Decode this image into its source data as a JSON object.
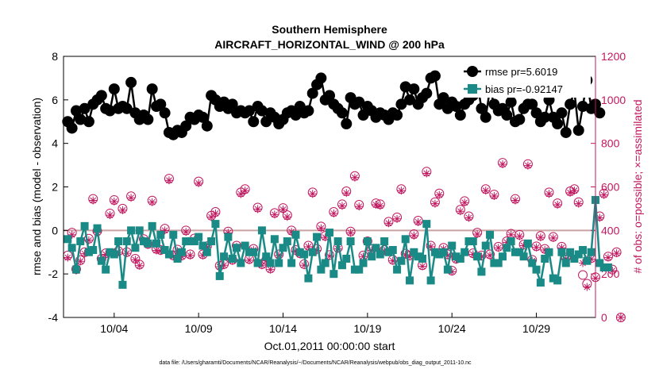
{
  "chart_data": {
    "type": "line",
    "title": "Southern Hemisphere",
    "subtitle": "AIRCRAFT_HORIZONTAL_WIND @ 200 hPa",
    "xlabel": "Oct.01,2011 00:00:00 start",
    "ylabel": "rmse and bias (model - observation)",
    "y2label": "# of obs: o=possible; ×=assimilated",
    "footnote": "data file: /Users/gharamti/Documents/NCAR/Reanalysis/~/Documents/NCAR/Reanalysis/webpub/obs_diag_output_2011-10.nc",
    "xlim": [
      1.0,
      32.5
    ],
    "ylim": [
      -4,
      8
    ],
    "y2lim": [
      0,
      1200
    ],
    "xticks": [
      4,
      9,
      14,
      19,
      24,
      29
    ],
    "xticklabels": [
      "10/04",
      "10/09",
      "10/14",
      "10/19",
      "10/24",
      "10/29"
    ],
    "yticks": [
      -4,
      -2,
      0,
      2,
      4,
      6,
      8
    ],
    "yticklabels": [
      "-4",
      "-2",
      "0",
      "2",
      "4",
      "6",
      "8"
    ],
    "y2ticks": [
      0,
      200,
      400,
      600,
      800,
      1000,
      1200
    ],
    "y2ticklabels": [
      "0",
      "200",
      "400",
      "600",
      "800",
      "1000",
      "1200"
    ],
    "legend_position": "top-right",
    "legend": [
      {
        "label": "rmse pr=5.6019",
        "color": "#000000"
      },
      {
        "label": "bias pr=-0.92147",
        "color": "#1a8a86"
      }
    ],
    "colors": {
      "rmse": "#000000",
      "bias": "#1a8a86",
      "obs": "#c0185f",
      "zero": "#c9a3a3",
      "axis2": "#c0185f"
    },
    "series": [
      {
        "name": "rmse",
        "axis": "left",
        "x_start": 1.25,
        "x_step": 0.25,
        "values": [
          5.0,
          4.7,
          5.5,
          5.1,
          5.6,
          5.0,
          5.8,
          6.0,
          6.2,
          5.6,
          5.5,
          6.5,
          5.6,
          5.7,
          5.6,
          6.8,
          5.4,
          5.1,
          5.3,
          5.1,
          6.5,
          5.7,
          5.8,
          5.4,
          4.5,
          4.4,
          4.6,
          4.5,
          4.8,
          5.2,
          5.1,
          5.3,
          5.2,
          4.8,
          6.2,
          6.0,
          5.7,
          5.9,
          5.6,
          5.8,
          5.4,
          5.5,
          5.4,
          5.5,
          5.0,
          5.7,
          5.5,
          5.0,
          5.4,
          5.2,
          4.9,
          5.1,
          5.4,
          5.5,
          5.3,
          5.7,
          5.4,
          5.5,
          6.3,
          6.7,
          7.0,
          6.0,
          6.2,
          5.8,
          5.6,
          5.4,
          4.9,
          6.1,
          5.8,
          5.9,
          5.3,
          5.7,
          5.5,
          5.2,
          5.4,
          5.3,
          5.1,
          5.4,
          5.3,
          5.8,
          6.6,
          6.0,
          6.5,
          5.8,
          6.1,
          6.3,
          7.0,
          7.1,
          5.8,
          6.1,
          5.6,
          5.9,
          5.7,
          5.3,
          5.8,
          6.0,
          6.2,
          6.8,
          5.6,
          5.2,
          6.5,
          5.8,
          5.5,
          5.6,
          5.3,
          5.9,
          5.0,
          5.1,
          5.6,
          5.8,
          5.8,
          5.4,
          5.0,
          5.2,
          6.0,
          5.2,
          4.9,
          5.4,
          4.5,
          5.8,
          6.4,
          4.6,
          5.7,
          6.9,
          5.6,
          5.8,
          5.4
        ]
      },
      {
        "name": "bias",
        "axis": "left",
        "x_start": 1.25,
        "x_step": 0.25,
        "values": [
          -0.4,
          -0.8,
          -1.8,
          -0.5,
          0.2,
          -1.0,
          -0.9,
          0.1,
          -1.4,
          -1.8,
          -1.0,
          -1.1,
          -0.5,
          -2.5,
          -0.5,
          0.0,
          -0.8,
          0.0,
          -0.5,
          -0.6,
          0.2,
          -0.6,
          -0.2,
          -0.9,
          -1.1,
          -0.2,
          -1.3,
          -1.0,
          -0.5,
          -0.5,
          -0.5,
          -0.3,
          -0.7,
          -1.0,
          -0.5,
          0.3,
          -2.1,
          -1.2,
          -0.3,
          -1.3,
          -0.8,
          -1.5,
          -0.7,
          -1.0,
          -1.0,
          -1.5,
          0.0,
          -1.2,
          -1.5,
          -0.4,
          -1.5,
          -0.8,
          -0.5,
          -1.5,
          -0.2,
          -1.0,
          -1.1,
          -2.2,
          -1.0,
          -0.3,
          -1.8,
          -1.5,
          -0.1,
          -2.0,
          -0.5,
          -1.6,
          -1.3,
          -0.5,
          -1.8,
          -1.8,
          -1.5,
          -0.5,
          -1.2,
          -0.8,
          -1.1,
          -0.5,
          -1.0,
          -0.9,
          -1.8,
          -1.4,
          -0.4,
          -2.3,
          -1.0,
          -1.2,
          -1.3,
          0.3,
          -2.3,
          -1.0,
          -1.1,
          -1.0,
          -1.8,
          -0.7,
          -1.2,
          -1.3,
          -1.0,
          -0.5,
          -0.5,
          -1.2,
          -1.9,
          -0.7,
          -0.2,
          -1.5,
          -1.5,
          -1.2,
          -0.8,
          -0.5,
          -1.0,
          -1.0,
          -1.2,
          -0.6,
          -1.5,
          -1.8,
          -2.4,
          -1.3,
          -1.0,
          -2.2,
          -2.3,
          -1.0,
          -1.5,
          -1.0,
          -1.3,
          -1.1,
          -0.9,
          -1.4,
          -1.0,
          1.4,
          -1.5,
          -1.7,
          -1.7
        ]
      },
      {
        "name": "obs_possible",
        "axis": "right",
        "x_start": 1.25,
        "x_step": 0.25,
        "values": [
          285,
          390,
          222,
          263,
          300,
          362,
          545,
          397,
          270,
          295,
          478,
          540,
          305,
          500,
          300,
          557,
          270,
          243,
          360,
          338,
          537,
          315,
          310,
          408,
          638,
          285,
          312,
          285,
          400,
          290,
          363,
          625,
          290,
          328,
          468,
          485,
          238,
          245,
          395,
          265,
          330,
          575,
          590,
          268,
          315,
          505,
          245,
          265,
          225,
          480,
          290,
          503,
          470,
          400,
          310,
          295,
          245,
          330,
          575,
          315,
          418,
          375,
          287,
          485,
          320,
          520,
          580,
          395,
          650,
          518,
          285,
          350,
          313,
          525,
          520,
          310,
          440,
          265,
          460,
          590,
          293,
          285,
          383,
          445,
          240,
          670,
          330,
          530,
          570,
          320,
          290,
          215,
          270,
          495,
          535,
          465,
          295,
          390,
          285,
          590,
          290,
          565,
          325,
          711,
          350,
          385,
          545,
          380,
          335,
          705,
          265,
          327,
          375,
          315,
          575,
          370,
          525,
          325,
          275,
          580,
          590,
          530,
          195,
          155,
          273,
          185,
          465,
          570,
          280,
          220,
          300,
          0
        ]
      },
      {
        "name": "obs_assimilated",
        "axis": "right",
        "x_start": 1.25,
        "x_step": 0.25,
        "values": [
          275,
          380,
          215,
          258,
          293,
          355,
          538,
          390,
          265,
          290,
          470,
          533,
          300,
          493,
          295,
          550,
          265,
          238,
          355,
          333,
          530,
          308,
          305,
          400,
          630,
          280,
          305,
          280,
          393,
          285,
          357,
          617,
          285,
          323,
          461,
          478,
          233,
          240,
          389,
          260,
          325,
          567,
          583,
          263,
          310,
          498,
          240,
          260,
          220,
          473,
          285,
          496,
          462,
          393,
          305,
          290,
          240,
          325,
          568,
          308,
          410,
          368,
          282,
          478,
          315,
          513,
          572,
          389,
          643,
          510,
          280,
          345,
          308,
          518,
          513,
          305,
          433,
          260,
          453,
          583,
          288,
          280,
          376,
          438,
          235,
          662,
          325,
          523,
          563,
          315,
          285,
          210,
          265,
          488,
          528,
          458,
          290,
          383,
          280,
          583,
          285,
          558,
          320,
          704,
          345,
          380,
          538,
          373,
          330,
          698,
          260,
          322,
          368,
          310,
          568,
          365,
          518,
          320,
          270,
          573,
          583,
          523,
          250,
          140,
          268,
          180,
          458,
          563,
          275,
          215,
          295,
          0
        ]
      }
    ]
  }
}
